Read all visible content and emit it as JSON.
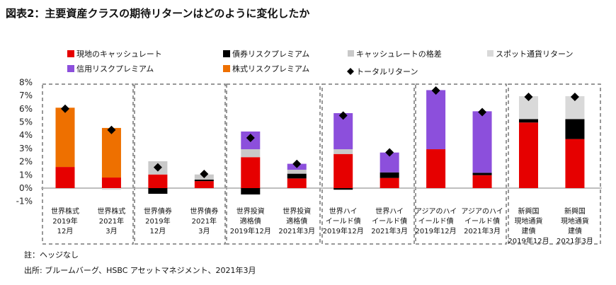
{
  "title": "図表2：主要資産クラスの期待リターンはどのように変化したか",
  "note": "註：ヘッジなし",
  "source": "出所: ブルームバーグ、HSBC アセットマネジメント、2021年3月",
  "chart_data": {
    "type": "bar",
    "stacked": true,
    "ylim": [
      -1,
      8
    ],
    "yticks": [
      "-1%",
      "0%",
      "1%",
      "2%",
      "3%",
      "4%",
      "5%",
      "6%",
      "7%",
      "8%"
    ],
    "legend_placement": "top",
    "categories": [
      [
        "世界株式",
        "2019年",
        "12月"
      ],
      [
        "世界株式",
        "2021年",
        "3月"
      ],
      [
        "世界債券",
        "2019年",
        "12月"
      ],
      [
        "世界債券",
        "2021年",
        "3月"
      ],
      [
        "世界投資",
        "適格債",
        "2019年12月"
      ],
      [
        "世界投資",
        "適格債",
        "2021年3月"
      ],
      [
        "世界ハイ",
        "イールド債",
        "2019年12月"
      ],
      [
        "世界ハイ",
        "イールド債",
        "2021年3月"
      ],
      [
        "アジアのハイ",
        "イールド債",
        "2019年12月"
      ],
      [
        "アジアのハイ",
        "イールド債",
        "2021年3月"
      ],
      [
        "新興国",
        "現地通貨",
        "建債",
        "2019年12月"
      ],
      [
        "新興国",
        "現地通貨",
        "建債",
        "2021年3月"
      ]
    ],
    "series": [
      {
        "name": "現地のキャッシュレート",
        "color": "#e60000",
        "values": [
          1.6,
          0.8,
          1.03,
          0.53,
          2.34,
          0.73,
          2.58,
          0.77,
          2.94,
          0.98,
          4.96,
          3.71
        ]
      },
      {
        "name": "債券リスクプレミアム",
        "color": "#000000",
        "values": [
          0,
          0,
          -0.43,
          0.11,
          -0.48,
          0.36,
          -0.12,
          0.42,
          0,
          0.18,
          0.26,
          1.51
        ]
      },
      {
        "name": "キャッシュレートの格差",
        "color": "#c9c9c9",
        "values": [
          0,
          0,
          1.0,
          0.39,
          0.6,
          0.3,
          0.36,
          0,
          0,
          0,
          0,
          0
        ]
      },
      {
        "name": "スポット通貨リターン",
        "color": "#d9d9d9",
        "values": [
          0,
          -0.12,
          0,
          0,
          0,
          0,
          0,
          0,
          0,
          0,
          1.73,
          1.73
        ]
      },
      {
        "name": "信用リスクプレミアム",
        "color": "#8c4fdc",
        "values": [
          0,
          0,
          0,
          0,
          1.34,
          0.45,
          2.73,
          1.5,
          4.47,
          4.65,
          0,
          0
        ]
      },
      {
        "name": "株式リスクプレミアム",
        "color": "#ee7000",
        "values": [
          4.48,
          3.75,
          0,
          0,
          0,
          0,
          0,
          0,
          0,
          0,
          0,
          0
        ]
      }
    ],
    "total_return": {
      "name": "トータルリターン",
      "values": [
        6.0,
        4.4,
        1.57,
        1.07,
        3.8,
        1.83,
        5.49,
        2.7,
        7.38,
        5.75,
        6.9,
        6.9
      ]
    }
  }
}
